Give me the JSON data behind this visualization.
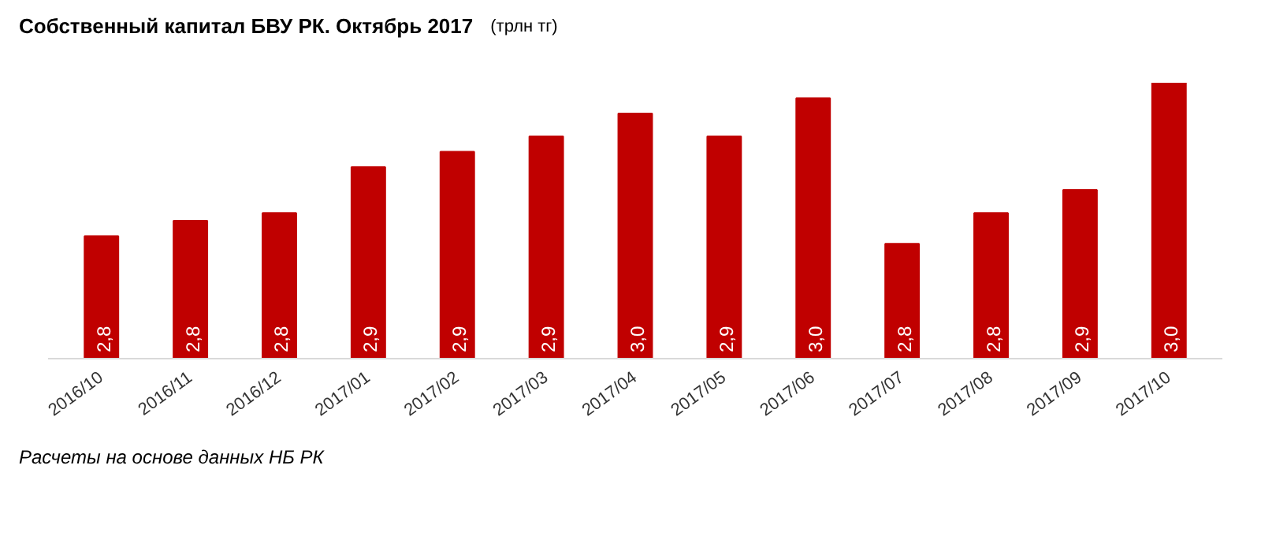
{
  "chart_data": {
    "type": "bar",
    "title": "Собственный капитал БВУ РК. Октябрь 2017",
    "subtitle": "(трлн тг)",
    "categories": [
      "2016/10",
      "2016/11",
      "2016/12",
      "2017/01",
      "2017/02",
      "2017/03",
      "2017/04",
      "2017/05",
      "2017/06",
      "2017/07",
      "2017/08",
      "2017/09",
      "2017/10"
    ],
    "ylim": [
      2.64,
      3.0
    ],
    "values": [
      2.8,
      2.82,
      2.83,
      2.89,
      2.91,
      2.93,
      2.96,
      2.93,
      2.98,
      2.79,
      2.83,
      2.86,
      3.0
    ],
    "value_labels": [
      "2,8",
      "2,8",
      "2,8",
      "2,9",
      "2,9",
      "2,9",
      "3,0",
      "2,9",
      "3,0",
      "2,8",
      "2,8",
      "2,9",
      "3,0"
    ],
    "color": "#c00000",
    "grid": false,
    "annotations": [
      "Расчеты на основе данных НБ РК"
    ]
  }
}
